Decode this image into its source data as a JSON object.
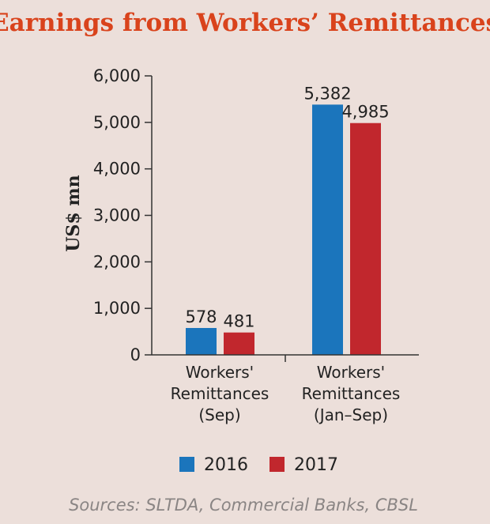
{
  "chart_data": {
    "type": "bar",
    "title": "Earnings from Workers’ Remittances",
    "ylabel": "US$ mn",
    "xlabel": "",
    "ylim": [
      0,
      6000
    ],
    "yticks": [
      "0",
      "1,000",
      "2,000",
      "3,000",
      "4,000",
      "5,000",
      "6,000"
    ],
    "categories": [
      [
        "Workers'",
        "Remittances",
        "(Sep)"
      ],
      [
        "Workers'",
        "Remittances",
        "(Jan–Sep)"
      ]
    ],
    "series": [
      {
        "name": "2016",
        "color": "#1b75bc",
        "values": [
          578,
          5382
        ],
        "labels": [
          "578",
          "5,382"
        ]
      },
      {
        "name": "2017",
        "color": "#c1272d",
        "values": [
          481,
          4985
        ],
        "labels": [
          "481",
          "4,985"
        ]
      }
    ],
    "grid": false,
    "legend_position": "bottom"
  },
  "source": "Sources: SLTDA, Commercial Banks, CBSL",
  "colors": {
    "title": "#d9431c",
    "background": "#ecdfda",
    "axis": "#333333"
  }
}
